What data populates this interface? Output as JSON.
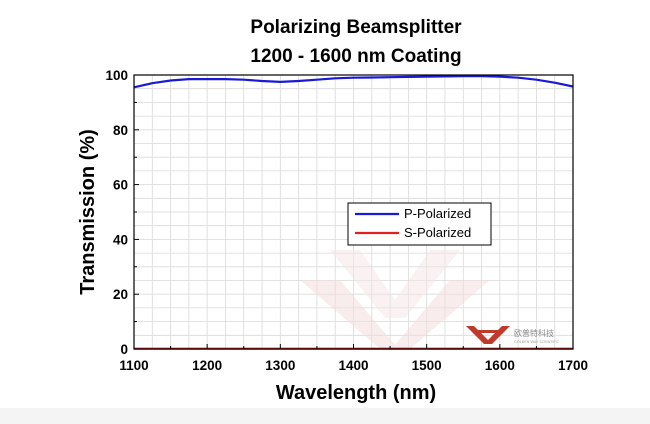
{
  "chart_data": {
    "type": "line",
    "title": "Polarizing Beamsplitter",
    "subtitle": "1200 - 1600 nm Coating",
    "xlabel": "Wavelength (nm)",
    "ylabel": "Transmission (%)",
    "xlim": [
      1100,
      1700
    ],
    "ylim": [
      0,
      100
    ],
    "xticks": [
      1100,
      1200,
      1300,
      1400,
      1500,
      1600,
      1700
    ],
    "yticks": [
      0,
      20,
      40,
      60,
      80,
      100
    ],
    "grid": true,
    "legend_position": "center-right",
    "series": [
      {
        "name": "P-Polarized",
        "color": "#1a1ad6",
        "x": [
          1100,
          1125,
          1150,
          1175,
          1200,
          1225,
          1250,
          1275,
          1300,
          1325,
          1350,
          1375,
          1400,
          1425,
          1450,
          1475,
          1500,
          1525,
          1550,
          1575,
          1600,
          1625,
          1650,
          1675,
          1700
        ],
        "y": [
          95.5,
          97.0,
          98.0,
          98.5,
          98.5,
          98.5,
          98.3,
          97.8,
          97.5,
          97.8,
          98.3,
          98.8,
          99.0,
          99.1,
          99.2,
          99.3,
          99.4,
          99.5,
          99.6,
          99.6,
          99.4,
          99.0,
          98.3,
          97.2,
          95.8
        ]
      },
      {
        "name": "S-Polarized",
        "color": "#e02020",
        "x": [
          1100,
          1150,
          1200,
          1250,
          1300,
          1350,
          1400,
          1450,
          1500,
          1550,
          1600,
          1650,
          1700
        ],
        "y": [
          0.1,
          0.1,
          0.1,
          0.1,
          0.1,
          0.1,
          0.1,
          0.1,
          0.1,
          0.1,
          0.1,
          0.1,
          0.1
        ]
      }
    ]
  },
  "watermark": {
    "brand_cn": "欧普特科技",
    "brand_en": "GOLDEN WAY SCIENTIFIC",
    "color": "#c0392b"
  },
  "colors": {
    "grid": "#d9d9d9",
    "axis": "#000000",
    "background": "#ffffff"
  }
}
